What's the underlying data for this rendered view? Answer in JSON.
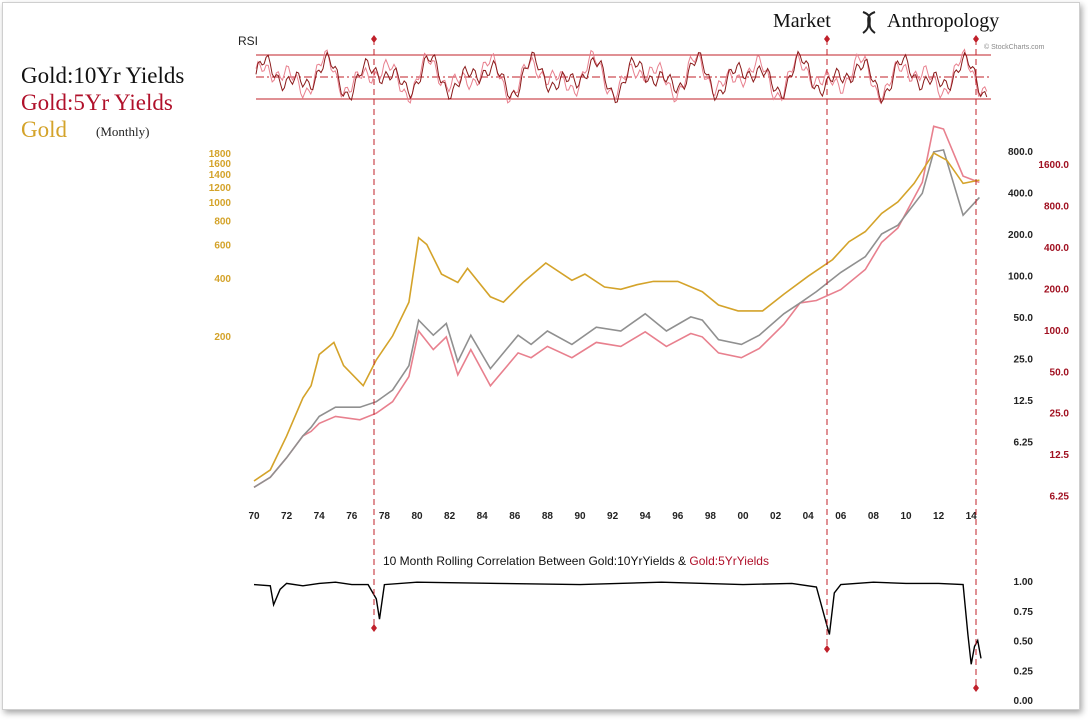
{
  "brand": {
    "left": "Market",
    "right": "Anthropology",
    "stockcharts": "© StockCharts.com"
  },
  "legend": [
    {
      "text": "Gold:10Yr Yields",
      "color": "#111111"
    },
    {
      "text": "Gold:5Yr Yields",
      "color": "#b0102a"
    },
    {
      "text": "Gold",
      "suffix": "(Monthly)",
      "color": "#d4a32a"
    }
  ],
  "colors": {
    "gold": "#d4a32a",
    "ten_year": "#909090",
    "five_year": "#e8808e",
    "red": "#c0202a",
    "corr": "#000000"
  },
  "chart_data": [
    {
      "type": "line",
      "title": "RSI",
      "panel": "top",
      "series": [
        {
          "name": "Gold:10Yr Yields",
          "color": "#8a1a1a"
        },
        {
          "name": "Gold:5Yr Yields",
          "color": "#e8808e"
        }
      ],
      "reference_lines": [
        "upper",
        "middle",
        "lower"
      ]
    },
    {
      "type": "line",
      "panel": "main",
      "x_ticks": [
        "70",
        "72",
        "74",
        "76",
        "78",
        "80",
        "82",
        "84",
        "86",
        "88",
        "90",
        "92",
        "94",
        "96",
        "98",
        "00",
        "02",
        "04",
        "06",
        "08",
        "10",
        "12",
        "14"
      ],
      "gold_axis_ticks": [
        "1800",
        "1600",
        "1400",
        "1200",
        "1000",
        "800",
        "600",
        "400",
        "200"
      ],
      "gold_axis_values": [
        1800,
        1600,
        1400,
        1200,
        1000,
        800,
        600,
        400,
        200
      ],
      "ten_year_axis_ticks": [
        "800.0",
        "400.0",
        "200.0",
        "100.0",
        "50.0",
        "25.0",
        "12.5",
        "6.25"
      ],
      "five_year_axis_ticks": [
        "1600.0",
        "800.0",
        "400.0",
        "200.0",
        "100.0",
        "50.0",
        "25.0",
        "12.5",
        "6.25"
      ],
      "series": [
        {
          "name": "Gold",
          "color": "#d4a32a",
          "x": [
            1970,
            1971,
            1972,
            1973,
            1973.5,
            1974,
            1974.9,
            1975.5,
            1976.7,
            1977.5,
            1978.5,
            1979.5,
            1980.1,
            1980.6,
            1981.5,
            1982.5,
            1983.1,
            1984.5,
            1985.3,
            1986.5,
            1987.9,
            1989.5,
            1990.3,
            1991.5,
            1992.5,
            1993.5,
            1994.5,
            1996,
            1997.5,
            1998.5,
            1999.7,
            2001.2,
            2002.5,
            2004,
            2005.5,
            2006.5,
            2007.5,
            2008.5,
            2009.5,
            2010.5,
            2011.7,
            2012.5,
            2013.5,
            2014.5
          ],
          "y": [
            35,
            40,
            60,
            95,
            110,
            160,
            185,
            140,
            110,
            150,
            200,
            300,
            650,
            600,
            420,
            380,
            450,
            320,
            300,
            380,
            480,
            390,
            420,
            360,
            350,
            370,
            385,
            385,
            340,
            290,
            270,
            270,
            330,
            410,
            500,
            620,
            700,
            870,
            1000,
            1250,
            1800,
            1650,
            1250,
            1300
          ]
        },
        {
          "name": "Gold:10Yr Yields",
          "color": "#909090",
          "x": [
            1970,
            1971,
            1972,
            1973,
            1973.5,
            1974,
            1975,
            1976.5,
            1977.5,
            1978.5,
            1979.5,
            1980.1,
            1981,
            1981.8,
            1982.5,
            1983.3,
            1984.5,
            1986.2,
            1987,
            1988,
            1989.5,
            1991,
            1992.5,
            1994,
            1995.3,
            1996.8,
            1997.5,
            1998.5,
            1999.9,
            2001,
            2002.5,
            2003.5,
            2004.5,
            2006,
            2007.5,
            2008.5,
            2009.5,
            2011,
            2011.7,
            2012.3,
            2013.5,
            2014.5
          ],
          "y": [
            5.5,
            6.5,
            9,
            13,
            15,
            18,
            21,
            21,
            23,
            28,
            42,
            90,
            70,
            85,
            45,
            70,
            40,
            70,
            60,
            75,
            60,
            80,
            75,
            100,
            75,
            95,
            90,
            65,
            60,
            70,
            100,
            120,
            145,
            200,
            260,
            380,
            440,
            750,
            1500,
            1550,
            520,
            700
          ]
        },
        {
          "name": "Gold:5Yr Yields",
          "color": "#e8808e",
          "x": [
            1970,
            1971,
            1972,
            1973,
            1973.5,
            1974,
            1975,
            1976.5,
            1977.5,
            1978.5,
            1979.5,
            1980.1,
            1981,
            1981.8,
            1982.5,
            1983.3,
            1984.5,
            1986.2,
            1987,
            1988,
            1989.5,
            1991,
            1992.5,
            1994,
            1995.3,
            1996.8,
            1997.5,
            1998.5,
            1999.9,
            2001,
            2002.5,
            2003.5,
            2004.5,
            2006,
            2007.5,
            2008.5,
            2009.5,
            2011,
            2011.7,
            2012.3,
            2013.5,
            2014.5
          ],
          "y": [
            5.5,
            6.5,
            9,
            13,
            14,
            16,
            18,
            17,
            19,
            23,
            35,
            75,
            55,
            68,
            36,
            55,
            30,
            52,
            48,
            58,
            48,
            62,
            58,
            74,
            58,
            72,
            68,
            52,
            48,
            56,
            84,
            120,
            125,
            150,
            210,
            330,
            420,
            900,
            2300,
            2200,
            1000,
            900
          ]
        }
      ]
    },
    {
      "type": "line",
      "panel": "bottom",
      "title": "10 Month Rolling Correlation Between Gold:10YrYields & Gold:5YrYields",
      "title_parts": [
        "10 Month Rolling Correlation Between Gold:10YrYields & ",
        "Gold:5YrYields"
      ],
      "y_ticks": [
        "1.00",
        "0.75",
        "0.50",
        "0.25",
        "0.00"
      ],
      "ylim": [
        0,
        1
      ],
      "series": [
        {
          "name": "10 Month Rolling Correlation",
          "color": "#000000",
          "x": [
            1970,
            1971,
            1971.2,
            1971.6,
            1972,
            1973,
            1974,
            1975,
            1976,
            1977,
            1977.5,
            1977.7,
            1978,
            1980,
            1985,
            1990,
            1995,
            2000,
            2003,
            2004.5,
            2005,
            2005.3,
            2005.6,
            2006,
            2008,
            2010,
            2012,
            2013.5,
            2013.8,
            2014,
            2014.2,
            2014.4,
            2014.6
          ],
          "y": [
            0.97,
            0.96,
            0.8,
            0.93,
            0.98,
            0.96,
            0.98,
            0.99,
            0.97,
            0.97,
            0.85,
            0.68,
            0.97,
            0.99,
            0.98,
            0.97,
            0.99,
            0.97,
            0.98,
            0.95,
            0.7,
            0.55,
            0.9,
            0.97,
            0.99,
            0.98,
            0.98,
            0.97,
            0.55,
            0.3,
            0.45,
            0.5,
            0.35
          ]
        }
      ]
    }
  ],
  "event_markers": [
    "1977.7",
    "2005.3",
    "2014.4"
  ]
}
